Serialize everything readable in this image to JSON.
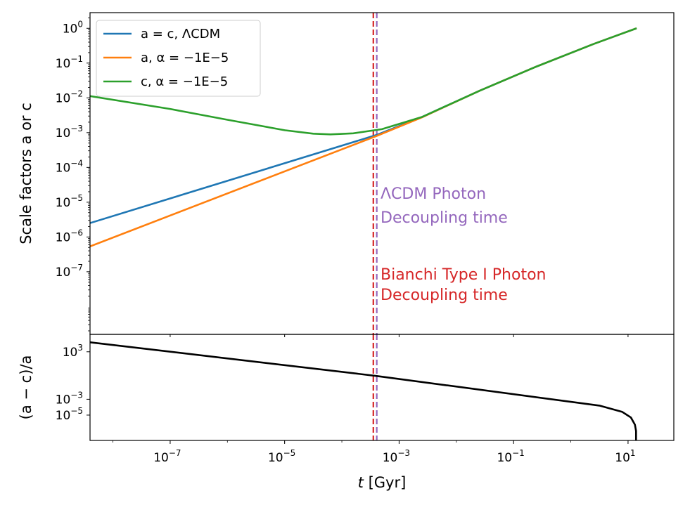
{
  "chart_data": {
    "type": "line",
    "xscale": "log",
    "xlabel": "t [Gyr]",
    "xlabel_var": "t",
    "xlabel_unit": " [Gyr]",
    "xlim_log10": [
      -8.4,
      1.8
    ],
    "xticks": [
      {
        "base": "10",
        "exp": "−7",
        "log10": -7
      },
      {
        "base": "10",
        "exp": "−5",
        "log10": -5
      },
      {
        "base": "10",
        "exp": "−3",
        "log10": -3
      },
      {
        "base": "10",
        "exp": "−1",
        "log10": -1
      },
      {
        "base": "10",
        "exp": "1",
        "log10": 1
      }
    ],
    "panels": [
      {
        "name": "scale-factors",
        "ylabel": "Scale factors a or c",
        "yscale": "log",
        "ylim_log10": [
          -8.8,
          0.45
        ],
        "yticks": [
          {
            "base": "10",
            "exp": "0",
            "log10": 0
          },
          {
            "base": "10",
            "exp": "−1",
            "log10": -1
          },
          {
            "base": "10",
            "exp": "−2",
            "log10": -2
          },
          {
            "base": "10",
            "exp": "−3",
            "log10": -3
          },
          {
            "base": "10",
            "exp": "−4",
            "log10": -4
          },
          {
            "base": "10",
            "exp": "−5",
            "log10": -5
          },
          {
            "base": "10",
            "exp": "−6",
            "log10": -6
          },
          {
            "base": "10",
            "exp": "−7",
            "log10": -7
          }
        ],
        "series": [
          {
            "name": "a = c, ΛCDM",
            "legend_text": "a = c, ΛCDM",
            "color": "#1f77b4",
            "log10_t": [
              -8.4,
              -3.4,
              -2.6,
              -1.6,
              -0.6,
              0.4,
              1.15
            ],
            "log10_y": [
              -5.6,
              -3.07,
              -2.55,
              -1.8,
              -1.1,
              -0.45,
              0.0
            ]
          },
          {
            "name": "a, α = −1E−5",
            "legend_text": "a, α = −1E−5",
            "color": "#ff7f0e",
            "log10_t": [
              -8.4,
              -3.4,
              -2.6,
              -1.6,
              -0.6,
              0.4,
              1.15
            ],
            "log10_y": [
              -6.27,
              -3.1,
              -2.56,
              -1.8,
              -1.1,
              -0.45,
              0.0
            ]
          },
          {
            "name": "c, α = −1E−5",
            "legend_text": "c, α = −1E−5",
            "color": "#2ca02c",
            "log10_t": [
              -8.4,
              -7.0,
              -6.0,
              -5.0,
              -4.5,
              -4.2,
              -3.8,
              -3.3,
              -2.6,
              -1.6,
              -0.6,
              0.4,
              1.15
            ],
            "log10_y": [
              -1.95,
              -2.32,
              -2.63,
              -2.93,
              -3.03,
              -3.05,
              -3.02,
              -2.9,
              -2.55,
              -1.8,
              -1.1,
              -0.45,
              0.0
            ]
          }
        ],
        "vlines": [
          {
            "name": "Bianchi Type I Photon Decoupling time",
            "log10_t": -3.45,
            "color": "#d62728",
            "style": "dashed"
          },
          {
            "name": "ΛCDM Photon Decoupling time",
            "log10_t": -3.39,
            "color": "#9467bd",
            "style": "dashed"
          }
        ],
        "annotations": [
          {
            "lines": [
              "ΛCDM Photon",
              "Decoupling time"
            ],
            "color": "#9467bd"
          },
          {
            "lines": [
              "Bianchi Type I Photon",
              "Decoupling time"
            ],
            "color": "#d62728"
          }
        ],
        "legend_position": "upper-left"
      },
      {
        "name": "relative-difference",
        "ylabel": "(a − c)/a",
        "yscale": "log",
        "ylim_log10": [
          -8.2,
          5.2
        ],
        "yticks": [
          {
            "base": "10",
            "exp": "3",
            "log10": 3
          },
          {
            "base": "10",
            "exp": "−3",
            "log10": -3
          },
          {
            "base": "10",
            "exp": "−5",
            "log10": -5
          }
        ],
        "series": [
          {
            "name": "(a − c)/a",
            "color": "#000000",
            "log10_t": [
              -8.4,
              -3.4,
              0.5,
              0.9,
              1.05,
              1.12,
              1.14,
              1.14
            ],
            "log10_y": [
              4.2,
              -0.05,
              -3.8,
              -4.6,
              -5.3,
              -6.2,
              -7.0,
              -8.2
            ]
          }
        ],
        "vlines": [
          {
            "name": "Bianchi Type I Photon Decoupling time",
            "log10_t": -3.45,
            "color": "#d62728",
            "style": "dashed"
          },
          {
            "name": "ΛCDM Photon Decoupling time",
            "log10_t": -3.39,
            "color": "#9467bd",
            "style": "dashed"
          }
        ]
      }
    ]
  }
}
